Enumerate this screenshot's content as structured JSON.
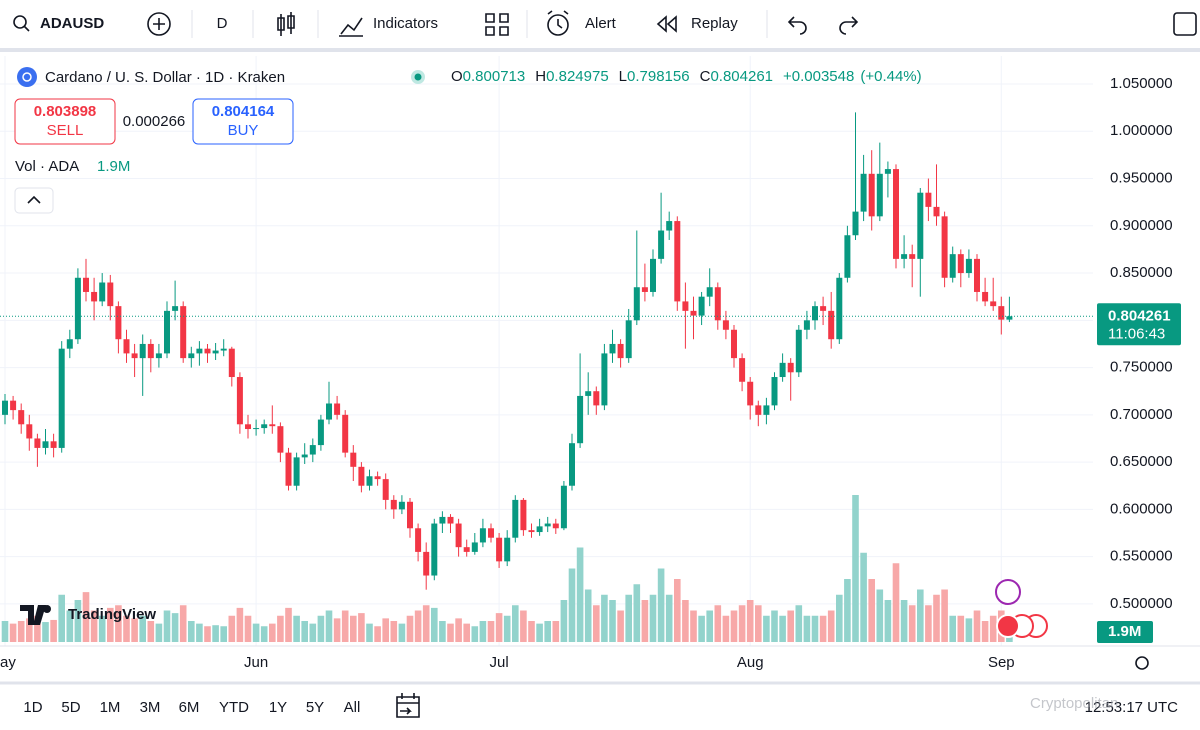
{
  "toolbar": {
    "symbol": "ADAUSD",
    "interval": "D",
    "indicators": "Indicators",
    "alert": "Alert",
    "replay": "Replay"
  },
  "legend": {
    "title": "Cardano / U. S. Dollar · 1D · Kraken",
    "o_label": "O",
    "h_label": "H",
    "l_label": "L",
    "c_label": "C",
    "change": "+0.003548",
    "change_pct": "(+0.44%)"
  },
  "trade": {
    "sell_price": 0.803898,
    "sell": "SELL",
    "spread": 0.000266,
    "buy_price": 0.804164,
    "buy": "BUY"
  },
  "volume_legend": {
    "label": "Vol · ADA"
  },
  "chart_data": {
    "type": "candlestick",
    "up_color": "#089981",
    "down_color": "#f23645",
    "volume_up_color": "#92d3cc",
    "volume_down_color": "#f7a8a8",
    "ylim": [
      0.4565,
      1.0754
    ],
    "yticks": [
      {
        "value": 0.5,
        "label": "0.500000"
      },
      {
        "value": 0.55,
        "label": "0.550000"
      },
      {
        "value": 0.6,
        "label": "0.600000"
      },
      {
        "value": 0.65,
        "label": "0.650000"
      },
      {
        "value": 0.7,
        "label": "0.700000"
      },
      {
        "value": 0.75,
        "label": "0.750000"
      },
      {
        "value": 0.8,
        "label": "0.800000"
      },
      {
        "value": 0.85,
        "label": "0.850000"
      },
      {
        "value": 0.9,
        "label": "0.900000"
      },
      {
        "value": 0.95,
        "label": "0.950000"
      },
      {
        "value": 1.0,
        "label": "1.000000"
      },
      {
        "value": 1.05,
        "label": "1.050000"
      }
    ],
    "xticks": [
      {
        "value": 0,
        "label": "ay"
      },
      {
        "value": 31,
        "label": "Jun"
      },
      {
        "value": 61,
        "label": "Jul"
      },
      {
        "value": 92,
        "label": "Aug"
      },
      {
        "value": 123,
        "label": "Sep"
      }
    ],
    "countdown": "11:06:43",
    "volume_label": "1.9M",
    "candles": [
      [
        0.7,
        0.722,
        0.69,
        0.715,
        4
      ],
      [
        0.715,
        0.72,
        0.695,
        0.705,
        3.5
      ],
      [
        0.705,
        0.712,
        0.68,
        0.69,
        4
      ],
      [
        0.69,
        0.7,
        0.662,
        0.675,
        4.5
      ],
      [
        0.675,
        0.68,
        0.645,
        0.665,
        5
      ],
      [
        0.665,
        0.685,
        0.658,
        0.672,
        3.8
      ],
      [
        0.672,
        0.68,
        0.655,
        0.665,
        4.2
      ],
      [
        0.665,
        0.778,
        0.66,
        0.77,
        9
      ],
      [
        0.77,
        0.79,
        0.76,
        0.78,
        6
      ],
      [
        0.78,
        0.855,
        0.775,
        0.845,
        8
      ],
      [
        0.845,
        0.865,
        0.82,
        0.83,
        9.5
      ],
      [
        0.83,
        0.845,
        0.8,
        0.82,
        6
      ],
      [
        0.82,
        0.85,
        0.815,
        0.84,
        5
      ],
      [
        0.84,
        0.848,
        0.8,
        0.815,
        6.5
      ],
      [
        0.815,
        0.82,
        0.765,
        0.78,
        7
      ],
      [
        0.78,
        0.79,
        0.755,
        0.765,
        5
      ],
      [
        0.765,
        0.775,
        0.74,
        0.76,
        4.5
      ],
      [
        0.76,
        0.785,
        0.72,
        0.775,
        5
      ],
      [
        0.775,
        0.78,
        0.745,
        0.76,
        4
      ],
      [
        0.76,
        0.775,
        0.75,
        0.765,
        3.5
      ],
      [
        0.765,
        0.82,
        0.76,
        0.81,
        6
      ],
      [
        0.81,
        0.842,
        0.8,
        0.815,
        5.5
      ],
      [
        0.815,
        0.82,
        0.755,
        0.76,
        7
      ],
      [
        0.76,
        0.772,
        0.75,
        0.765,
        4
      ],
      [
        0.765,
        0.778,
        0.752,
        0.77,
        3.5
      ],
      [
        0.77,
        0.775,
        0.755,
        0.765,
        3
      ],
      [
        0.765,
        0.776,
        0.758,
        0.768,
        3.2
      ],
      [
        0.768,
        0.78,
        0.762,
        0.77,
        3
      ],
      [
        0.77,
        0.772,
        0.73,
        0.74,
        5
      ],
      [
        0.74,
        0.745,
        0.68,
        0.69,
        6.5
      ],
      [
        0.69,
        0.7,
        0.675,
        0.685,
        5
      ],
      [
        0.685,
        0.695,
        0.678,
        0.686,
        3.5
      ],
      [
        0.686,
        0.695,
        0.68,
        0.69,
        3
      ],
      [
        0.69,
        0.71,
        0.68,
        0.688,
        3.5
      ],
      [
        0.688,
        0.692,
        0.65,
        0.66,
        5
      ],
      [
        0.66,
        0.665,
        0.62,
        0.625,
        6.5
      ],
      [
        0.625,
        0.66,
        0.62,
        0.655,
        5
      ],
      [
        0.655,
        0.67,
        0.648,
        0.658,
        4
      ],
      [
        0.658,
        0.675,
        0.65,
        0.668,
        3.5
      ],
      [
        0.668,
        0.7,
        0.662,
        0.695,
        5
      ],
      [
        0.695,
        0.735,
        0.69,
        0.712,
        6
      ],
      [
        0.712,
        0.72,
        0.695,
        0.7,
        4.5
      ],
      [
        0.7,
        0.705,
        0.655,
        0.66,
        6
      ],
      [
        0.66,
        0.668,
        0.63,
        0.645,
        5
      ],
      [
        0.645,
        0.65,
        0.618,
        0.625,
        5.5
      ],
      [
        0.625,
        0.642,
        0.62,
        0.635,
        3.5
      ],
      [
        0.635,
        0.64,
        0.625,
        0.632,
        3
      ],
      [
        0.632,
        0.638,
        0.6,
        0.61,
        4.5
      ],
      [
        0.61,
        0.615,
        0.59,
        0.6,
        4
      ],
      [
        0.6,
        0.615,
        0.595,
        0.608,
        3.5
      ],
      [
        0.608,
        0.612,
        0.57,
        0.58,
        5
      ],
      [
        0.58,
        0.585,
        0.545,
        0.555,
        6
      ],
      [
        0.555,
        0.565,
        0.515,
        0.53,
        7
      ],
      [
        0.53,
        0.59,
        0.525,
        0.585,
        6.5
      ],
      [
        0.585,
        0.598,
        0.575,
        0.592,
        4
      ],
      [
        0.592,
        0.595,
        0.575,
        0.585,
        3.5
      ],
      [
        0.585,
        0.59,
        0.55,
        0.56,
        4.5
      ],
      [
        0.56,
        0.568,
        0.55,
        0.555,
        3.5
      ],
      [
        0.555,
        0.575,
        0.552,
        0.565,
        3
      ],
      [
        0.565,
        0.59,
        0.56,
        0.58,
        4
      ],
      [
        0.58,
        0.585,
        0.565,
        0.57,
        4
      ],
      [
        0.57,
        0.575,
        0.538,
        0.545,
        5.5
      ],
      [
        0.545,
        0.578,
        0.54,
        0.57,
        5
      ],
      [
        0.57,
        0.615,
        0.565,
        0.61,
        7
      ],
      [
        0.61,
        0.612,
        0.572,
        0.578,
        6
      ],
      [
        0.578,
        0.585,
        0.57,
        0.576,
        4
      ],
      [
        0.576,
        0.59,
        0.572,
        0.582,
        3.5
      ],
      [
        0.582,
        0.592,
        0.576,
        0.585,
        4
      ],
      [
        0.585,
        0.59,
        0.574,
        0.58,
        4
      ],
      [
        0.58,
        0.63,
        0.578,
        0.625,
        8
      ],
      [
        0.625,
        0.68,
        0.62,
        0.67,
        14
      ],
      [
        0.67,
        0.765,
        0.665,
        0.72,
        18
      ],
      [
        0.72,
        0.745,
        0.7,
        0.725,
        10
      ],
      [
        0.725,
        0.73,
        0.7,
        0.71,
        7
      ],
      [
        0.71,
        0.775,
        0.705,
        0.765,
        9
      ],
      [
        0.765,
        0.79,
        0.755,
        0.775,
        8
      ],
      [
        0.775,
        0.78,
        0.75,
        0.76,
        6
      ],
      [
        0.76,
        0.812,
        0.755,
        0.8,
        9
      ],
      [
        0.8,
        0.895,
        0.795,
        0.835,
        11
      ],
      [
        0.835,
        0.86,
        0.82,
        0.83,
        8
      ],
      [
        0.83,
        0.875,
        0.825,
        0.865,
        9
      ],
      [
        0.865,
        0.935,
        0.86,
        0.895,
        14
      ],
      [
        0.895,
        0.915,
        0.885,
        0.905,
        9
      ],
      [
        0.905,
        0.91,
        0.81,
        0.82,
        12
      ],
      [
        0.82,
        0.84,
        0.77,
        0.81,
        8
      ],
      [
        0.81,
        0.825,
        0.78,
        0.805,
        6
      ],
      [
        0.805,
        0.83,
        0.795,
        0.825,
        5
      ],
      [
        0.825,
        0.855,
        0.815,
        0.835,
        6
      ],
      [
        0.835,
        0.84,
        0.79,
        0.8,
        7
      ],
      [
        0.8,
        0.81,
        0.78,
        0.79,
        5
      ],
      [
        0.79,
        0.795,
        0.75,
        0.76,
        6
      ],
      [
        0.76,
        0.765,
        0.725,
        0.735,
        7
      ],
      [
        0.735,
        0.74,
        0.695,
        0.71,
        8
      ],
      [
        0.71,
        0.715,
        0.688,
        0.7,
        7
      ],
      [
        0.7,
        0.718,
        0.69,
        0.71,
        5
      ],
      [
        0.71,
        0.745,
        0.705,
        0.74,
        6
      ],
      [
        0.74,
        0.765,
        0.735,
        0.755,
        5
      ],
      [
        0.755,
        0.76,
        0.715,
        0.745,
        6
      ],
      [
        0.745,
        0.795,
        0.74,
        0.79,
        7
      ],
      [
        0.79,
        0.81,
        0.78,
        0.8,
        5
      ],
      [
        0.8,
        0.82,
        0.79,
        0.815,
        5
      ],
      [
        0.815,
        0.825,
        0.795,
        0.81,
        5
      ],
      [
        0.81,
        0.83,
        0.77,
        0.78,
        6
      ],
      [
        0.78,
        0.85,
        0.775,
        0.845,
        9
      ],
      [
        0.845,
        0.9,
        0.84,
        0.89,
        12
      ],
      [
        0.89,
        1.02,
        0.885,
        0.915,
        28
      ],
      [
        0.915,
        0.975,
        0.905,
        0.955,
        17
      ],
      [
        0.955,
        0.98,
        0.895,
        0.91,
        12
      ],
      [
        0.91,
        0.988,
        0.905,
        0.955,
        10
      ],
      [
        0.955,
        0.968,
        0.93,
        0.96,
        8
      ],
      [
        0.96,
        0.965,
        0.855,
        0.865,
        15
      ],
      [
        0.865,
        0.89,
        0.855,
        0.87,
        8
      ],
      [
        0.87,
        0.88,
        0.835,
        0.865,
        7
      ],
      [
        0.865,
        0.94,
        0.825,
        0.935,
        10
      ],
      [
        0.935,
        0.95,
        0.905,
        0.92,
        7
      ],
      [
        0.92,
        0.965,
        0.9,
        0.91,
        9
      ],
      [
        0.91,
        0.915,
        0.835,
        0.845,
        10
      ],
      [
        0.845,
        0.878,
        0.84,
        0.87,
        5
      ],
      [
        0.87,
        0.875,
        0.835,
        0.85,
        5
      ],
      [
        0.85,
        0.875,
        0.845,
        0.865,
        4.5
      ],
      [
        0.865,
        0.87,
        0.82,
        0.83,
        6
      ],
      [
        0.83,
        0.845,
        0.815,
        0.82,
        4
      ],
      [
        0.82,
        0.845,
        0.81,
        0.815,
        5
      ],
      [
        0.815,
        0.825,
        0.785,
        0.800713,
        6
      ],
      [
        0.800713,
        0.824975,
        0.798156,
        0.804261,
        1.9
      ]
    ]
  },
  "range_buttons": [
    "1D",
    "5D",
    "1M",
    "3M",
    "6M",
    "YTD",
    "1Y",
    "5Y",
    "All"
  ],
  "clock": "12:53:17 UTC",
  "branding": "TradingView",
  "watermark": "Cryptopolitan"
}
